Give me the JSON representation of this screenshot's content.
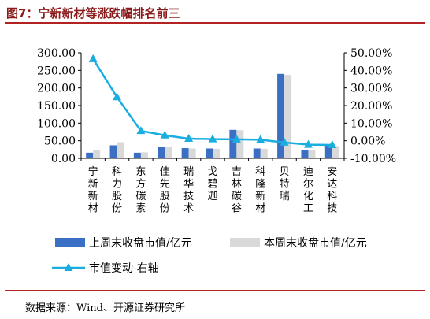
{
  "figure_title": "图7：宁新新材等涨跌幅排名前三",
  "source_note": "数据来源：Wind、开源证券研究所",
  "chart_data": {
    "type": "bar",
    "categories": [
      "宁新新材",
      "科力股份",
      "东方碳素",
      "佳先股份",
      "瑞华技术",
      "戈碧迦",
      "吉林碳谷",
      "科隆新材",
      "贝特瑞",
      "迪尔化工",
      "安达科技"
    ],
    "series": [
      {
        "name": "上周末收盘市值/亿元",
        "type": "bar",
        "axis": "left",
        "color": "#3a6fc4",
        "values": [
          16,
          37,
          16,
          32,
          29,
          28,
          81,
          28,
          240,
          24,
          36
        ]
      },
      {
        "name": "本周末收盘市值/亿元",
        "type": "bar",
        "axis": "left",
        "color": "#d9d9d9",
        "values": [
          23,
          46,
          17,
          33,
          28,
          27,
          80,
          27,
          237,
          24,
          35
        ]
      },
      {
        "name": "市值变动-右轴",
        "type": "line",
        "axis": "right",
        "color": "#1aaee0",
        "values": [
          46.5,
          24.8,
          5.6,
          3.1,
          1.2,
          0.9,
          0.8,
          0.6,
          -1.0,
          -2.2,
          -2.4
        ]
      }
    ],
    "y_left": {
      "min": 0,
      "max": 300,
      "step": 50,
      "tick_labels": [
        "0.00",
        "50.00",
        "100.00",
        "150.00",
        "200.00",
        "250.00",
        "300.00"
      ]
    },
    "y_right": {
      "min": -10,
      "max": 50,
      "step": 10,
      "tick_labels": [
        "-10.00%",
        "0.00%",
        "10.00%",
        "20.00%",
        "30.00%",
        "40.00%",
        "50.00%"
      ]
    },
    "grid": false,
    "legend_position": "bottom"
  }
}
